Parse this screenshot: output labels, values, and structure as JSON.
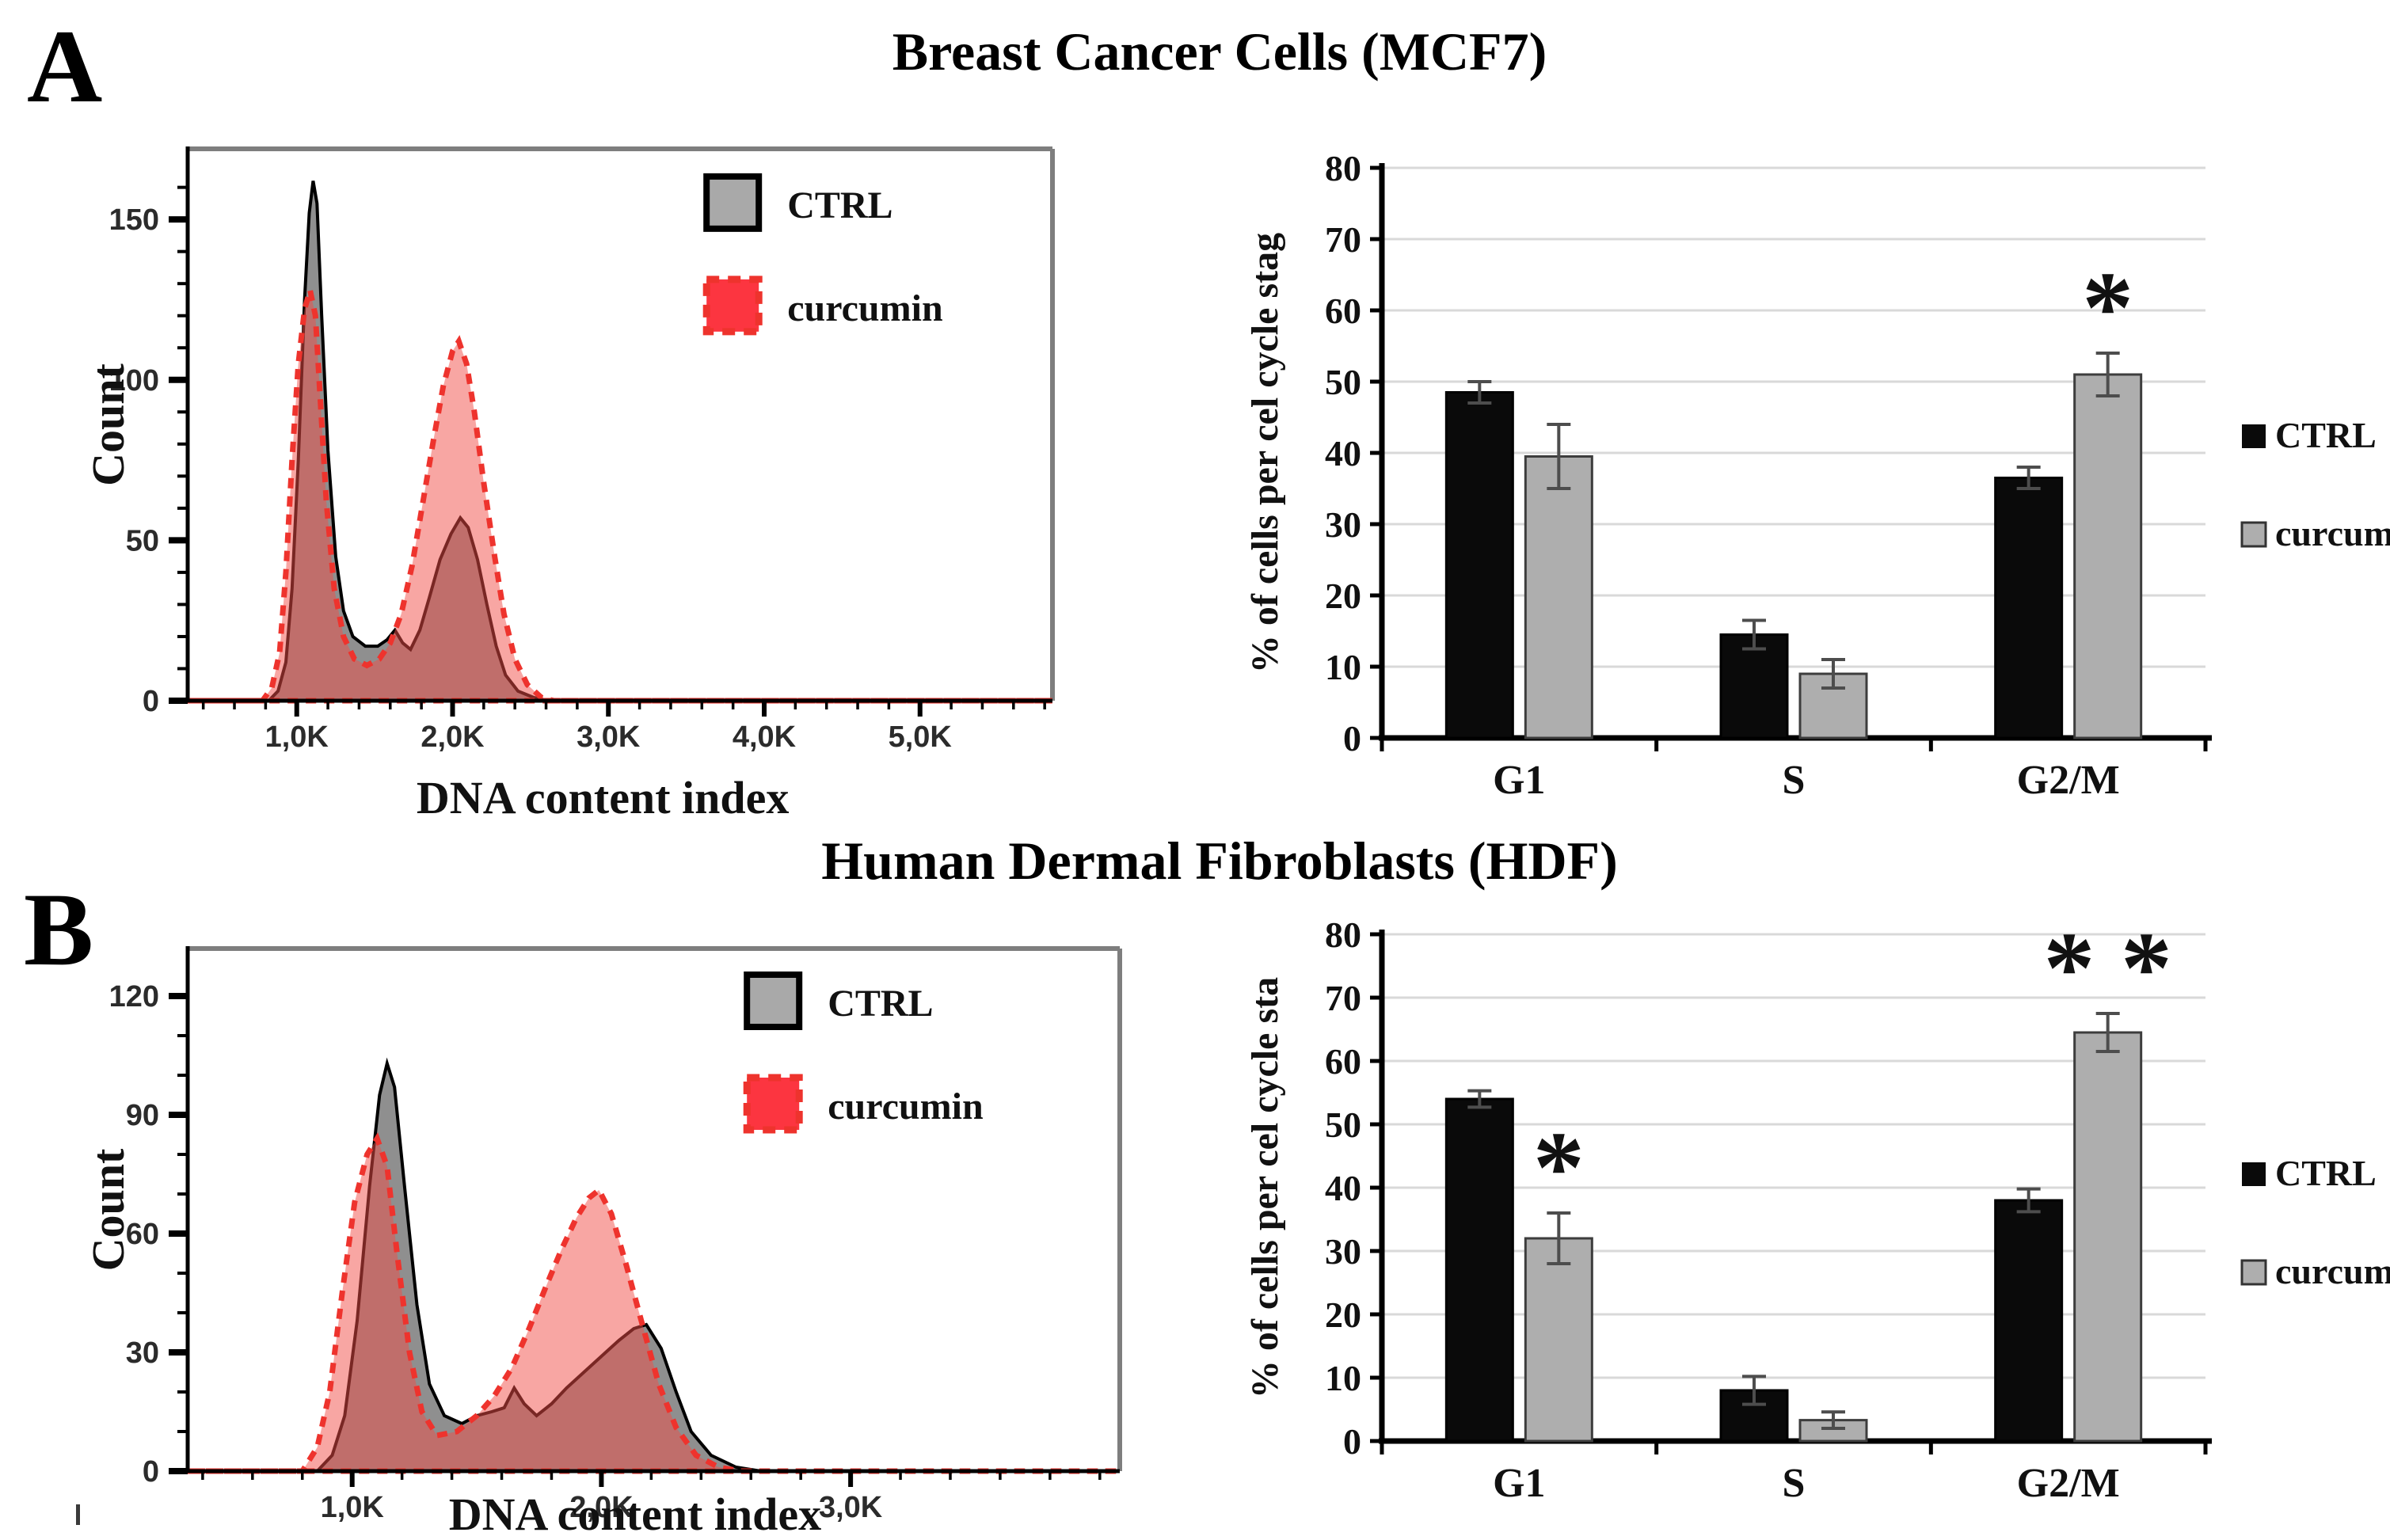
{
  "figure": {
    "panels": [
      {
        "label": "A",
        "title": "Breast Cancer Cells (MCF7)"
      },
      {
        "label": "B",
        "title": "Human Dermal Fibroblasts (HDF)"
      }
    ]
  },
  "palette": {
    "frame_gray": "#7e7e7e",
    "ctrl_fill": "#8f8f8f",
    "ctrl_stroke": "#000000",
    "curcumin_fill": "rgba(242,77,71,0.5)",
    "curcumin_stroke": "#ee332d",
    "legend_ctrl_fill": "#a9a9a9",
    "legend_red": "#fc3540",
    "grid": "#d9d9d9",
    "error_bar": "#4d4d4d",
    "text": "#111111"
  },
  "chart_data": [
    {
      "id": "mcf7-dna-histogram",
      "type": "area",
      "panel": "A",
      "xlabel": "DNA content index",
      "ylabel": "Count",
      "xlim": [
        0.3,
        5.85
      ],
      "ylim": [
        0,
        172
      ],
      "xminor_step": 0.2,
      "yminor_step": 10,
      "xticks": [
        {
          "v": 1,
          "label": "1,0K"
        },
        {
          "v": 2,
          "label": "2,0K"
        },
        {
          "v": 3,
          "label": "3,0K"
        },
        {
          "v": 4,
          "label": "4,0K"
        },
        {
          "v": 5,
          "label": "5,0K"
        }
      ],
      "yticks": [
        {
          "v": 0,
          "label": "0"
        },
        {
          "v": 50,
          "label": "50"
        },
        {
          "v": 100,
          "label": "100"
        },
        {
          "v": 150,
          "label": "150"
        }
      ],
      "legend": [
        {
          "name": "CTRL",
          "swatch": "gray-solid"
        },
        {
          "name": "curcumin",
          "swatch": "red-dashed"
        }
      ],
      "series": [
        {
          "name": "CTRL",
          "style": "ctrl",
          "points": [
            [
              0.3,
              0
            ],
            [
              0.82,
              0
            ],
            [
              0.88,
              3
            ],
            [
              0.93,
              12
            ],
            [
              0.97,
              35
            ],
            [
              1.01,
              75
            ],
            [
              1.05,
              125
            ],
            [
              1.08,
              152
            ],
            [
              1.105,
              162
            ],
            [
              1.13,
              155
            ],
            [
              1.16,
              120
            ],
            [
              1.2,
              78
            ],
            [
              1.25,
              45
            ],
            [
              1.3,
              28
            ],
            [
              1.36,
              20
            ],
            [
              1.44,
              17
            ],
            [
              1.52,
              17
            ],
            [
              1.58,
              19
            ],
            [
              1.63,
              22
            ],
            [
              1.68,
              18
            ],
            [
              1.73,
              16
            ],
            [
              1.79,
              22
            ],
            [
              1.85,
              32
            ],
            [
              1.92,
              44
            ],
            [
              1.99,
              52
            ],
            [
              2.05,
              57
            ],
            [
              2.1,
              54
            ],
            [
              2.16,
              44
            ],
            [
              2.22,
              30
            ],
            [
              2.28,
              17
            ],
            [
              2.34,
              8
            ],
            [
              2.42,
              3
            ],
            [
              2.52,
              1
            ],
            [
              2.62,
              0
            ],
            [
              5.85,
              0
            ]
          ]
        },
        {
          "name": "curcumin",
          "style": "curcumin",
          "points": [
            [
              0.3,
              0
            ],
            [
              0.78,
              0
            ],
            [
              0.84,
              4
            ],
            [
              0.89,
              15
            ],
            [
              0.93,
              40
            ],
            [
              0.97,
              75
            ],
            [
              1.01,
              105
            ],
            [
              1.05,
              122
            ],
            [
              1.085,
              128
            ],
            [
              1.12,
              120
            ],
            [
              1.15,
              95
            ],
            [
              1.19,
              62
            ],
            [
              1.24,
              35
            ],
            [
              1.3,
              20
            ],
            [
              1.37,
              13
            ],
            [
              1.45,
              11
            ],
            [
              1.53,
              13
            ],
            [
              1.6,
              18
            ],
            [
              1.67,
              27
            ],
            [
              1.74,
              42
            ],
            [
              1.81,
              62
            ],
            [
              1.88,
              82
            ],
            [
              1.94,
              98
            ],
            [
              2.0,
              109
            ],
            [
              2.04,
              112
            ],
            [
              2.09,
              105
            ],
            [
              2.14,
              90
            ],
            [
              2.2,
              68
            ],
            [
              2.27,
              45
            ],
            [
              2.33,
              27
            ],
            [
              2.4,
              13
            ],
            [
              2.48,
              5
            ],
            [
              2.57,
              1
            ],
            [
              2.65,
              0
            ],
            [
              5.85,
              0
            ]
          ]
        }
      ]
    },
    {
      "id": "mcf7-cell-cycle-bars",
      "type": "bar",
      "panel": "A",
      "ylabel": "% of cells per cel cycle stag",
      "categories": [
        "G1",
        "S",
        "G2/M"
      ],
      "ylim": [
        0,
        80
      ],
      "ytick_step": 10,
      "yticks": [
        "0",
        "10",
        "20",
        "30",
        "40",
        "50",
        "60",
        "70",
        "80"
      ],
      "grid": true,
      "legend_position": "right",
      "series": [
        {
          "name": "CTRL",
          "color": "#0a0a0a",
          "values": [
            48.5,
            14.5,
            36.5
          ],
          "errors": [
            1.5,
            2.0,
            1.5
          ]
        },
        {
          "name": "curcumin",
          "color": "#aeaeae",
          "values": [
            39.5,
            9.0,
            51.0
          ],
          "errors": [
            4.5,
            2.0,
            3.0
          ]
        }
      ],
      "annotations": [
        {
          "category": "G2/M",
          "series": "curcumin",
          "text": "*"
        }
      ]
    },
    {
      "id": "hdf-dna-histogram",
      "type": "area",
      "panel": "B",
      "xlabel": "DNA content index",
      "ylabel": "Count",
      "xlim": [
        0.34,
        4.08
      ],
      "ylim": [
        0,
        132
      ],
      "xminor_step": 0.2,
      "yminor_step": 10,
      "xticks": [
        {
          "v": 1,
          "label": "1,0K"
        },
        {
          "v": 2,
          "label": "2,0K"
        },
        {
          "v": 3,
          "label": "3,0K"
        }
      ],
      "yticks": [
        {
          "v": 0,
          "label": "0"
        },
        {
          "v": 30,
          "label": "30"
        },
        {
          "v": 60,
          "label": "60"
        },
        {
          "v": 90,
          "label": "90"
        },
        {
          "v": 120,
          "label": "120"
        }
      ],
      "legend": [
        {
          "name": "CTRL",
          "swatch": "gray-solid"
        },
        {
          "name": "curcumin",
          "swatch": "red-dashed"
        }
      ],
      "series": [
        {
          "name": "CTRL",
          "style": "ctrl",
          "points": [
            [
              0.34,
              0
            ],
            [
              0.86,
              0
            ],
            [
              0.92,
              4
            ],
            [
              0.97,
              14
            ],
            [
              1.02,
              38
            ],
            [
              1.07,
              72
            ],
            [
              1.11,
              95
            ],
            [
              1.14,
              103
            ],
            [
              1.17,
              97
            ],
            [
              1.21,
              72
            ],
            [
              1.26,
              42
            ],
            [
              1.31,
              22
            ],
            [
              1.37,
              14
            ],
            [
              1.44,
              12
            ],
            [
              1.5,
              14
            ],
            [
              1.56,
              15
            ],
            [
              1.61,
              16
            ],
            [
              1.65,
              21
            ],
            [
              1.69,
              17
            ],
            [
              1.74,
              14
            ],
            [
              1.8,
              17
            ],
            [
              1.86,
              21
            ],
            [
              1.93,
              25
            ],
            [
              2.0,
              29
            ],
            [
              2.07,
              33
            ],
            [
              2.13,
              36
            ],
            [
              2.18,
              37
            ],
            [
              2.24,
              31
            ],
            [
              2.3,
              20
            ],
            [
              2.36,
              10
            ],
            [
              2.44,
              4
            ],
            [
              2.54,
              1
            ],
            [
              2.64,
              0
            ],
            [
              4.08,
              0
            ]
          ]
        },
        {
          "name": "curcumin",
          "style": "curcumin",
          "points": [
            [
              0.34,
              0
            ],
            [
              0.8,
              0
            ],
            [
              0.86,
              6
            ],
            [
              0.91,
              20
            ],
            [
              0.96,
              45
            ],
            [
              1.01,
              68
            ],
            [
              1.06,
              80
            ],
            [
              1.1,
              84
            ],
            [
              1.14,
              77
            ],
            [
              1.18,
              55
            ],
            [
              1.23,
              30
            ],
            [
              1.28,
              15
            ],
            [
              1.34,
              9
            ],
            [
              1.42,
              10
            ],
            [
              1.5,
              14
            ],
            [
              1.57,
              19
            ],
            [
              1.64,
              26
            ],
            [
              1.71,
              36
            ],
            [
              1.78,
              47
            ],
            [
              1.84,
              56
            ],
            [
              1.9,
              64
            ],
            [
              1.95,
              69
            ],
            [
              1.99,
              71
            ],
            [
              2.04,
              65
            ],
            [
              2.1,
              52
            ],
            [
              2.16,
              38
            ],
            [
              2.23,
              22
            ],
            [
              2.3,
              11
            ],
            [
              2.38,
              4
            ],
            [
              2.47,
              1
            ],
            [
              2.56,
              0
            ],
            [
              4.08,
              0
            ]
          ]
        }
      ]
    },
    {
      "id": "hdf-cell-cycle-bars",
      "type": "bar",
      "panel": "B",
      "ylabel": "% of cells per cel cycle sta",
      "categories": [
        "G1",
        "S",
        "G2/M"
      ],
      "ylim": [
        0,
        80
      ],
      "ytick_step": 10,
      "yticks": [
        "0",
        "10",
        "20",
        "30",
        "40",
        "50",
        "60",
        "70",
        "80"
      ],
      "grid": true,
      "legend_position": "right",
      "series": [
        {
          "name": "CTRL",
          "color": "#0a0a0a",
          "values": [
            54.0,
            8.0,
            38.0
          ],
          "errors": [
            1.3,
            2.2,
            1.8
          ]
        },
        {
          "name": "curcumin",
          "color": "#aeaeae",
          "values": [
            32.0,
            3.3,
            64.5
          ],
          "errors": [
            4.0,
            1.3,
            3.0
          ]
        }
      ],
      "annotations": [
        {
          "category": "G1",
          "series": "curcumin",
          "text": "*"
        },
        {
          "category": "G2/M",
          "series": "curcumin",
          "text": "* *"
        }
      ]
    }
  ]
}
